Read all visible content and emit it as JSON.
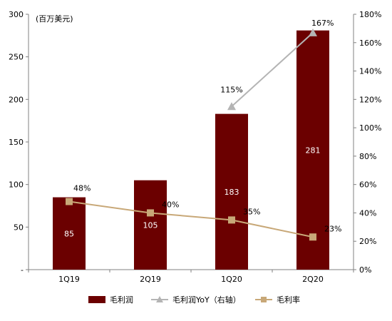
{
  "chart_data": {
    "type": "bar",
    "unit_label": "(百万美元)",
    "categories": [
      "1Q19",
      "2Q19",
      "1Q20",
      "2Q20"
    ],
    "y_left": {
      "min": 0,
      "max": 300,
      "ticks": [
        "-",
        "50",
        "100",
        "150",
        "200",
        "250",
        "300"
      ],
      "tick_values": [
        0,
        50,
        100,
        150,
        200,
        250,
        300
      ]
    },
    "y_right": {
      "min": 0,
      "max": 180,
      "ticks": [
        "0%",
        "20%",
        "40%",
        "60%",
        "80%",
        "100%",
        "120%",
        "140%",
        "160%",
        "180%"
      ],
      "tick_values": [
        0,
        20,
        40,
        60,
        80,
        100,
        120,
        140,
        160,
        180
      ]
    },
    "series": [
      {
        "name": "毛利润",
        "type": "bar",
        "axis": "left",
        "values": [
          85,
          105,
          183,
          281
        ],
        "labels": [
          "85",
          "",
          "183",
          "281"
        ],
        "color": "#6b0000"
      },
      {
        "name": "毛利润YoY（右轴）",
        "type": "line",
        "axis": "right",
        "values": [
          null,
          null,
          115,
          167
        ],
        "labels": [
          "",
          "",
          "115%",
          "167%"
        ],
        "color": "#b4b4b4",
        "marker": "triangle"
      },
      {
        "name": "毛利率",
        "type": "line",
        "axis": "right",
        "values": [
          48,
          40,
          35,
          23
        ],
        "labels": [
          "48%",
          "40%",
          "35%",
          "23%"
        ],
        "color": "#c8a878",
        "marker": "square"
      }
    ],
    "extra_labels": [
      "105"
    ],
    "grid": false,
    "legend_position": "bottom"
  }
}
